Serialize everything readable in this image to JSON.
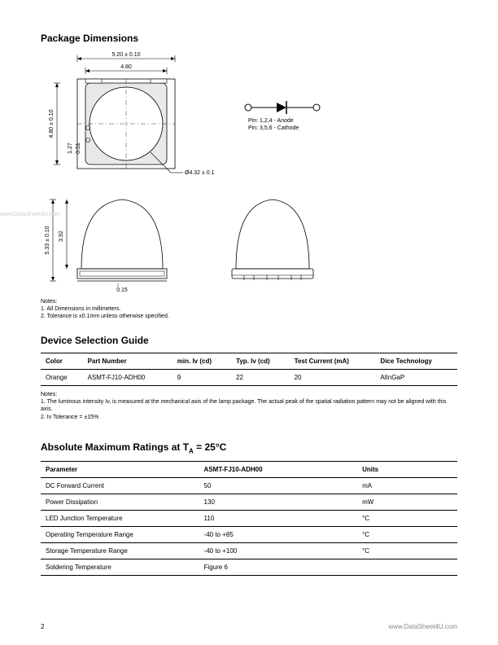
{
  "sections": {
    "package_dimensions": {
      "heading": "Package Dimensions",
      "dims": {
        "width_outer": "5.20 ± 0.10",
        "width_inner": "4.80",
        "height_outer": "4.80 ± 0.10",
        "small1": "1.27",
        "small2": "0.51",
        "diameter": "Ø4.32 ± 0.1",
        "side_height": "5.33 ± 0.10",
        "side_inner": "3.92",
        "base_offset": "0.15"
      },
      "pin_text1": "Pin: 1,2,4 - Anode",
      "pin_text2": "Pin: 3,5,6 - Cathode",
      "notes_label": "Notes:",
      "note1": "1.   All Dimensions in millimeters.",
      "note2": "2.   Tolerance is ±0.1mm unless otherwise specified."
    },
    "device_selection": {
      "heading": "Device Selection Guide",
      "columns": [
        "Color",
        "Part Number",
        "min. Iv (cd)",
        "Typ. Iv (cd)",
        "Test Current (mA)",
        "Dice Technology"
      ],
      "rows": [
        [
          "Orange",
          "ASMT-FJ10-ADH00",
          "9",
          "22",
          "20",
          "AlInGaP"
        ]
      ],
      "notes_label": "Notes:",
      "note1": "1.   The luminous intensity Iv, is measured at the mechanical axis of the lamp package. The actual peak of the spatial radiation pattern may not be aligned with this axis.",
      "note2": "2.   Iv Tolerance = ±15%"
    },
    "abs_max": {
      "heading_prefix": "Absolute Maximum Ratings at T",
      "heading_sub": "A",
      "heading_suffix": " = 25°C",
      "columns": [
        "Parameter",
        "ASMT-FJ10-ADH00",
        "Units"
      ],
      "rows": [
        [
          "DC Forward Current",
          "50",
          "mA"
        ],
        [
          "Power Dissipation",
          "130",
          "mW"
        ],
        [
          "LED Junction Temperature",
          "110",
          "°C"
        ],
        [
          "Operating Temperature Range",
          "-40 to +85",
          "°C"
        ],
        [
          "Storage Temperature Range",
          "-40 to +100",
          "°C"
        ],
        [
          "Soldering Temperature",
          "Figure 6",
          ""
        ]
      ]
    }
  },
  "footer": {
    "page": "2",
    "url": "www.DataSheet4U.com"
  },
  "watermark": "www.DataSheet4U.com",
  "colors": {
    "line": "#000000",
    "grey_fill": "#e8e8e8",
    "text": "#000000"
  }
}
